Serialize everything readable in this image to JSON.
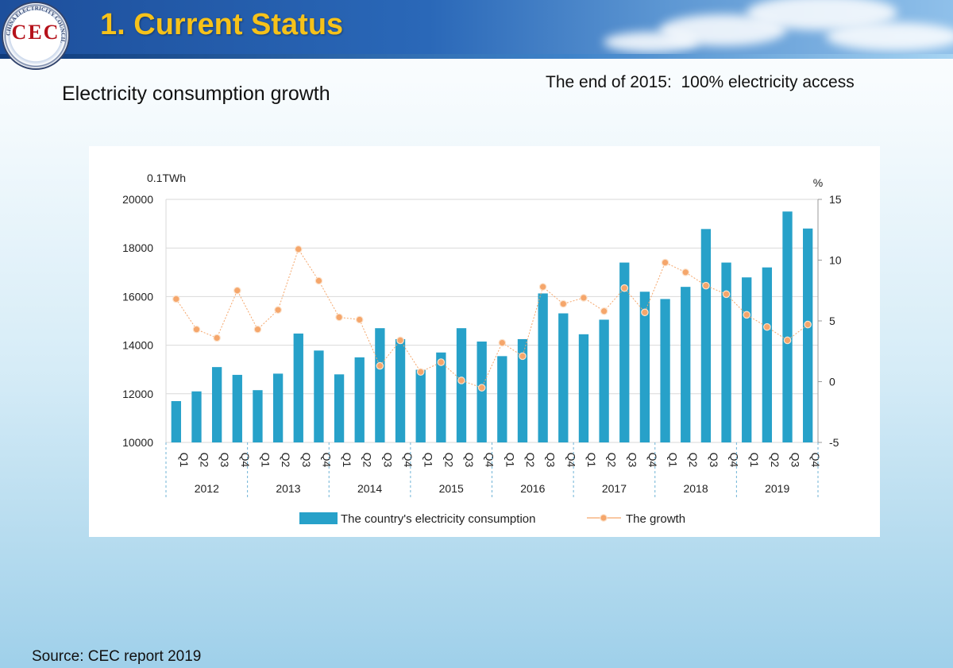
{
  "header": {
    "title": "1. Current Status",
    "logo_text": "CEC",
    "logo_ring_text": "CHINA ELECTRICITY COUNCIL"
  },
  "slide": {
    "subtitle": "Electricity consumption growth",
    "access_note": "The end of 2015:  100% electricity access",
    "source": "Source: CEC report 2019"
  },
  "chart_data": {
    "type": "bar",
    "left_unit": "0.1TWh",
    "right_unit": "%",
    "years": [
      "2012",
      "2013",
      "2014",
      "2015",
      "2016",
      "2017",
      "2018",
      "2019"
    ],
    "quarters": [
      "Q1",
      "Q2",
      "Q3",
      "Q4"
    ],
    "categories": [
      "2012 Q1",
      "2012 Q2",
      "2012 Q3",
      "2012 Q4",
      "2013 Q1",
      "2013 Q2",
      "2013 Q3",
      "2013 Q4",
      "2014 Q1",
      "2014 Q2",
      "2014 Q3",
      "2014 Q4",
      "2015 Q1",
      "2015 Q2",
      "2015 Q3",
      "2015 Q4",
      "2016 Q1",
      "2016 Q2",
      "2016 Q3",
      "2016 Q4",
      "2017 Q1",
      "2017 Q2",
      "2017 Q3",
      "2017 Q4",
      "2018 Q1",
      "2018 Q2",
      "2018 Q3",
      "2018 Q4",
      "2019 Q1",
      "2019 Q2",
      "2019 Q3",
      "2019 Q4"
    ],
    "ylim_left": [
      10000,
      20000
    ],
    "yticks_left": [
      10000,
      12000,
      14000,
      16000,
      18000,
      20000
    ],
    "ylim_right": [
      -5,
      15
    ],
    "yticks_right": [
      -5,
      0,
      5,
      10,
      15
    ],
    "grid": true,
    "legend_position": "bottom",
    "series": [
      {
        "name": "The country's electricity consumption",
        "type": "bar",
        "axis": "left",
        "color": "#27a1c9",
        "values": [
          11700,
          12100,
          13100,
          12780,
          12150,
          12830,
          14480,
          13780,
          12800,
          13500,
          14700,
          14250,
          12990,
          13700,
          14700,
          14150,
          13550,
          14250,
          16130,
          15310,
          14450,
          15050,
          17400,
          16200,
          15900,
          16400,
          18780,
          17400,
          16790,
          17200,
          19500,
          18800
        ]
      },
      {
        "name": "The growth",
        "type": "line",
        "axis": "right",
        "color": "#f5a66b",
        "values": [
          6.8,
          4.3,
          3.6,
          7.5,
          4.3,
          5.9,
          10.9,
          8.3,
          5.3,
          5.1,
          1.3,
          3.4,
          0.8,
          1.6,
          0.1,
          -0.5,
          3.2,
          2.1,
          7.8,
          6.4,
          6.9,
          5.8,
          7.7,
          5.7,
          9.8,
          9.0,
          7.9,
          7.2,
          5.5,
          4.5,
          3.4,
          4.7
        ]
      }
    ]
  }
}
